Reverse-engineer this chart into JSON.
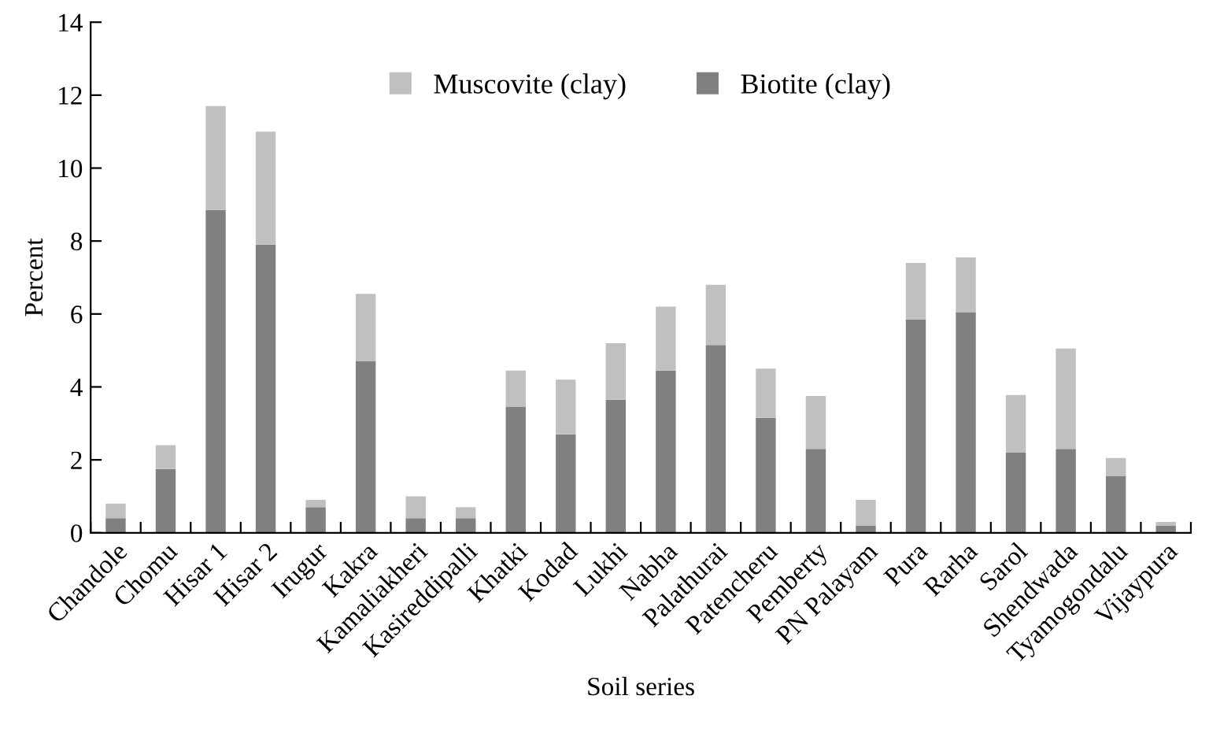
{
  "chart_data": {
    "type": "bar",
    "stacked": true,
    "xlabel": "Soil series",
    "ylabel": "Percent",
    "categories": [
      "Chandole",
      "Chomu",
      "Hisar 1",
      "Hisar 2",
      "Irugur",
      "Kakra",
      "Kamaliakheri",
      "Kasireddipalli",
      "Khatki",
      "Kodad",
      "Lukhi",
      "Nabha",
      "Palathurai",
      "Patencheru",
      "Pemberty",
      "PN Palayam",
      "Pura",
      "Rarha",
      "Sarol",
      "Shendwada",
      "Tyamogondalu",
      "Vijaypura"
    ],
    "series": [
      {
        "name": "Biotite (clay)",
        "color": "#808080",
        "values": [
          0.4,
          1.75,
          8.85,
          7.9,
          0.7,
          4.7,
          0.4,
          0.4,
          3.45,
          2.7,
          3.65,
          4.45,
          5.15,
          3.15,
          2.3,
          0.2,
          5.85,
          6.05,
          2.2,
          2.3,
          1.55,
          0.2
        ]
      },
      {
        "name": "Muscovite (clay)",
        "color": "#c0c0c0",
        "values": [
          0.4,
          0.65,
          2.85,
          3.1,
          0.2,
          1.85,
          0.6,
          0.3,
          1.0,
          1.5,
          1.55,
          1.75,
          1.65,
          1.35,
          1.45,
          0.7,
          1.55,
          1.5,
          1.58,
          2.75,
          0.5,
          0.1
        ]
      }
    ],
    "ylim": [
      0,
      14
    ],
    "yticks": [
      0,
      2,
      4,
      6,
      8,
      10,
      12,
      14
    ],
    "grid": false,
    "legend": "top"
  }
}
